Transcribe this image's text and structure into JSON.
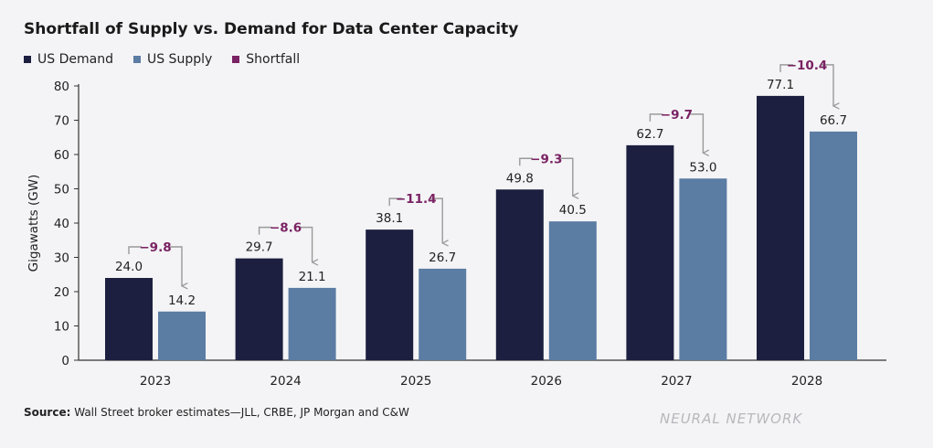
{
  "colors": {
    "demand": "#1c1f3f",
    "supply": "#5b7ca3",
    "shortfall": "#7a2263",
    "arrow": "#9a9a9a"
  },
  "legend": [
    {
      "label": "US Demand",
      "color": "#1c1f3f"
    },
    {
      "label": "US Supply",
      "color": "#5b7ca3"
    },
    {
      "label": "Shortfall",
      "color": "#7a2263"
    }
  ],
  "source": {
    "prefix": "Source:",
    "text": "Wall Street broker estimates—JLL, CRBE, JP Morgan and C&W"
  },
  "watermark": "NEURAL NETWORK",
  "chart_data": {
    "type": "bar",
    "title": "Shortfall of Supply vs. Demand for Data Center Capacity",
    "xlabel": "",
    "ylabel": "Gigawatts (GW)",
    "ylim": [
      0,
      80
    ],
    "yticks": [
      0,
      10,
      20,
      30,
      40,
      50,
      60,
      70,
      80
    ],
    "categories": [
      "2023",
      "2024",
      "2025",
      "2026",
      "2027",
      "2028"
    ],
    "series": [
      {
        "name": "US Demand",
        "values": [
          24.0,
          29.7,
          38.1,
          49.8,
          62.7,
          77.1
        ],
        "labels": [
          "24.0",
          "29.7",
          "38.1",
          "49.8",
          "62.7",
          "77.1"
        ]
      },
      {
        "name": "US Supply",
        "values": [
          14.2,
          21.1,
          26.7,
          40.5,
          53.0,
          66.7
        ],
        "labels": [
          "14.2",
          "21.1",
          "26.7",
          "40.5",
          "53.0",
          "66.7"
        ]
      }
    ],
    "shortfall": {
      "name": "Shortfall",
      "values": [
        -9.8,
        -8.6,
        -11.4,
        -9.3,
        -9.7,
        -10.4
      ],
      "labels": [
        "−9.8",
        "−8.6",
        "−11.4",
        "−9.3",
        "−9.7",
        "−10.4"
      ]
    },
    "grid": false,
    "legend_position": "top-left"
  }
}
